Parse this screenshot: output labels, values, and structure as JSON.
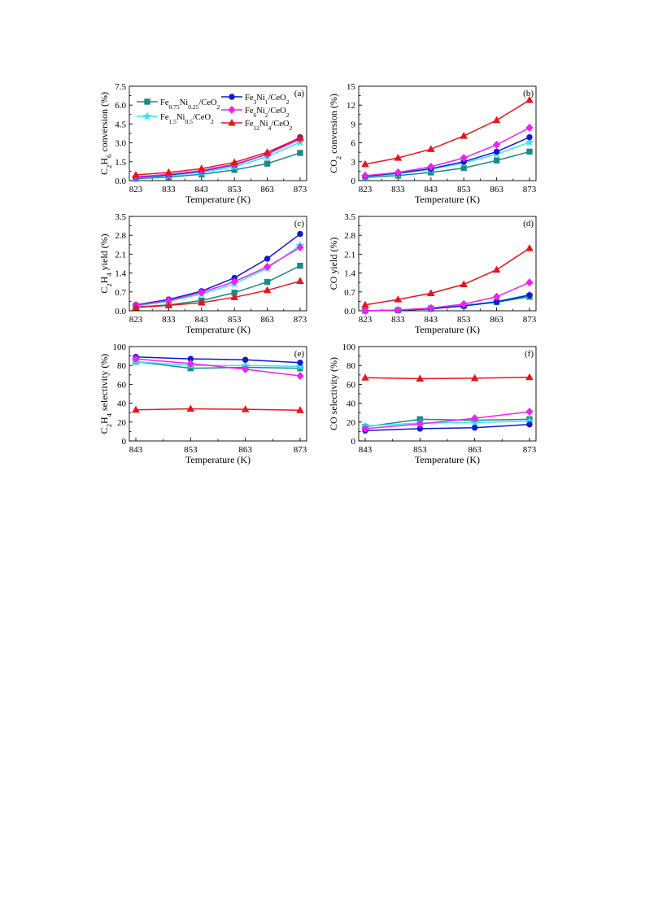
{
  "figure": {
    "legend": [
      {
        "series": "Fe0.75Ni0.25/CeO2",
        "color": "#1b8a8a",
        "marker": "square",
        "parts": [
          [
            "Fe",
            ""
          ],
          [
            "0.75",
            "sub"
          ],
          [
            "Ni",
            ""
          ],
          [
            "0.25",
            "sub"
          ],
          [
            "/CeO",
            ""
          ],
          [
            "2",
            "sub"
          ]
        ]
      },
      {
        "series": "Fe1.5Ni0.5/CeO2",
        "color": "#33e6f0",
        "marker": "star",
        "parts": [
          [
            "Fe",
            ""
          ],
          [
            "1.5",
            "sub"
          ],
          [
            "Ni",
            ""
          ],
          [
            "0.5",
            "sub"
          ],
          [
            "/CeO",
            ""
          ],
          [
            "2",
            "sub"
          ]
        ]
      },
      {
        "series": "Fe3Ni1/CeO2",
        "color": "#0f17d8",
        "marker": "circle",
        "parts": [
          [
            "Fe",
            ""
          ],
          [
            "3",
            "sub"
          ],
          [
            "Ni",
            ""
          ],
          [
            "1",
            "sub"
          ],
          [
            "/CeO",
            ""
          ],
          [
            "2",
            "sub"
          ]
        ]
      },
      {
        "series": "Fe6Ni2/CeO2",
        "color": "#ee22ee",
        "marker": "diamond",
        "parts": [
          [
            "Fe",
            ""
          ],
          [
            "6",
            "sub"
          ],
          [
            "Ni",
            ""
          ],
          [
            "2",
            "sub"
          ],
          [
            "/CeO",
            ""
          ],
          [
            "2",
            "sub"
          ]
        ]
      },
      {
        "series": "Fe12Ni4/CeO2",
        "color": "#e8141a",
        "marker": "triangle",
        "parts": [
          [
            "Fe",
            ""
          ],
          [
            "12",
            "sub"
          ],
          [
            "Ni",
            ""
          ],
          [
            "4",
            "sub"
          ],
          [
            "/CeO",
            ""
          ],
          [
            "2",
            "sub"
          ]
        ]
      }
    ]
  },
  "chart_data": [
    {
      "id": "a",
      "panel_label": "(a)",
      "type": "line",
      "xlabel": "Temperature (K)",
      "ylabel_parts": [
        [
          "C",
          ""
        ],
        [
          "2",
          "sub"
        ],
        [
          "H",
          ""
        ],
        [
          "6",
          "sub"
        ],
        [
          " conversion (%)",
          ""
        ]
      ],
      "x": [
        823,
        833,
        843,
        853,
        863,
        873
      ],
      "xticks": [
        823,
        833,
        843,
        853,
        863,
        873
      ],
      "ylim": [
        0,
        7.5
      ],
      "yticks": [
        "0.0",
        "1.5",
        "3.0",
        "4.5",
        "6.0",
        "7.5"
      ],
      "series": [
        {
          "name": "Fe0.75Ni0.25/CeO2",
          "values": [
            0.15,
            0.28,
            0.5,
            0.85,
            1.35,
            2.2
          ]
        },
        {
          "name": "Fe1.5Ni0.5/CeO2",
          "values": [
            0.2,
            0.38,
            0.65,
            1.1,
            1.9,
            3.05
          ]
        },
        {
          "name": "Fe3Ni1/CeO2",
          "values": [
            0.25,
            0.45,
            0.75,
            1.25,
            2.1,
            3.45
          ]
        },
        {
          "name": "Fe6Ni2/CeO2",
          "values": [
            0.3,
            0.5,
            0.8,
            1.3,
            2.1,
            3.3
          ]
        },
        {
          "name": "Fe12Ni4/CeO2",
          "values": [
            0.45,
            0.65,
            0.95,
            1.45,
            2.25,
            3.4
          ]
        }
      ]
    },
    {
      "id": "b",
      "panel_label": "(b)",
      "type": "line",
      "xlabel": "Temperature (K)",
      "ylabel_parts": [
        [
          "CO",
          ""
        ],
        [
          "2",
          "sub"
        ],
        [
          " conversion (%)",
          ""
        ]
      ],
      "x": [
        823,
        833,
        843,
        853,
        863,
        873
      ],
      "xticks": [
        823,
        833,
        843,
        853,
        863,
        873
      ],
      "ylim": [
        0,
        15
      ],
      "yticks": [
        "0",
        "3",
        "6",
        "9",
        "12",
        "15"
      ],
      "series": [
        {
          "name": "Fe0.75Ni0.25/CeO2",
          "values": [
            0.5,
            0.8,
            1.3,
            2.0,
            3.2,
            4.6
          ]
        },
        {
          "name": "Fe1.5Ni0.5/CeO2",
          "values": [
            0.6,
            1.1,
            1.8,
            2.8,
            4.2,
            6.1
          ]
        },
        {
          "name": "Fe3Ni1/CeO2",
          "values": [
            0.7,
            1.2,
            1.9,
            3.0,
            4.6,
            6.9
          ]
        },
        {
          "name": "Fe6Ni2/CeO2",
          "values": [
            0.8,
            1.3,
            2.2,
            3.6,
            5.7,
            8.4
          ]
        },
        {
          "name": "Fe12Ni4/CeO2",
          "values": [
            2.6,
            3.6,
            5.0,
            7.1,
            9.6,
            12.8
          ]
        }
      ]
    },
    {
      "id": "c",
      "panel_label": "(c)",
      "type": "line",
      "xlabel": "Temperature (K)",
      "ylabel_parts": [
        [
          "C",
          ""
        ],
        [
          "2",
          "sub"
        ],
        [
          "H",
          ""
        ],
        [
          "4",
          "sub"
        ],
        [
          " yield (%)",
          ""
        ]
      ],
      "x": [
        823,
        833,
        843,
        853,
        863,
        873
      ],
      "xticks": [
        823,
        833,
        843,
        853,
        863,
        873
      ],
      "ylim": [
        0,
        3.5
      ],
      "yticks": [
        "0.0",
        "0.7",
        "1.4",
        "2.1",
        "2.8",
        "3.5"
      ],
      "series": [
        {
          "name": "Fe0.75Ni0.25/CeO2",
          "values": [
            0.14,
            0.22,
            0.38,
            0.67,
            1.07,
            1.67
          ]
        },
        {
          "name": "Fe1.5Ni0.5/CeO2",
          "values": [
            0.18,
            0.35,
            0.62,
            1.0,
            1.58,
            2.42
          ]
        },
        {
          "name": "Fe3Ni1/CeO2",
          "values": [
            0.22,
            0.42,
            0.73,
            1.22,
            1.93,
            2.85
          ]
        },
        {
          "name": "Fe6Ni2/CeO2",
          "values": [
            0.2,
            0.38,
            0.68,
            1.08,
            1.63,
            2.35
          ]
        },
        {
          "name": "Fe12Ni4/CeO2",
          "values": [
            0.12,
            0.2,
            0.3,
            0.5,
            0.76,
            1.1
          ]
        }
      ]
    },
    {
      "id": "d",
      "panel_label": "(d)",
      "type": "line",
      "xlabel": "Temperature (K)",
      "ylabel_parts": [
        [
          "CO yield (%)",
          ""
        ]
      ],
      "x": [
        823,
        833,
        843,
        853,
        863,
        873
      ],
      "xticks": [
        823,
        833,
        843,
        853,
        863,
        873
      ],
      "ylim": [
        0,
        3.5
      ],
      "yticks": [
        "0.0",
        "0.7",
        "1.4",
        "2.1",
        "2.8",
        "3.5"
      ],
      "series": [
        {
          "name": "Fe0.75Ni0.25/CeO2",
          "values": [
            0.0,
            0.02,
            0.08,
            0.18,
            0.32,
            0.52
          ]
        },
        {
          "name": "Fe1.5Ni0.5/CeO2",
          "values": [
            0.0,
            0.03,
            0.08,
            0.2,
            0.35,
            0.6
          ]
        },
        {
          "name": "Fe3Ni1/CeO2",
          "values": [
            0.0,
            0.02,
            0.07,
            0.18,
            0.33,
            0.58
          ]
        },
        {
          "name": "Fe6Ni2/CeO2",
          "values": [
            0.0,
            0.03,
            0.1,
            0.25,
            0.52,
            1.05
          ]
        },
        {
          "name": "Fe12Ni4/CeO2",
          "values": [
            0.22,
            0.42,
            0.65,
            0.98,
            1.52,
            2.32
          ]
        }
      ]
    },
    {
      "id": "e",
      "panel_label": "(e)",
      "type": "line",
      "xlabel": "Temperature (K)",
      "ylabel_parts": [
        [
          "C",
          ""
        ],
        [
          "2",
          "sub"
        ],
        [
          "H",
          ""
        ],
        [
          "4",
          "sub"
        ],
        [
          " selectivity (%)",
          ""
        ]
      ],
      "x": [
        843,
        853,
        863,
        873
      ],
      "xticks": [
        843,
        853,
        863,
        873
      ],
      "ylim": [
        0,
        100
      ],
      "yticks": [
        "0",
        "20",
        "40",
        "60",
        "80",
        "100"
      ],
      "series": [
        {
          "name": "Fe0.75Ni0.25/CeO2",
          "values": [
            84,
            77,
            78,
            77
          ]
        },
        {
          "name": "Fe1.5Ni0.5/CeO2",
          "values": [
            84,
            80,
            80,
            79
          ]
        },
        {
          "name": "Fe3Ni1/CeO2",
          "values": [
            89,
            87,
            86,
            83
          ]
        },
        {
          "name": "Fe6Ni2/CeO2",
          "values": [
            87,
            82,
            76,
            69
          ]
        },
        {
          "name": "Fe12Ni4/CeO2",
          "values": [
            33,
            34,
            33.5,
            32.5
          ]
        }
      ]
    },
    {
      "id": "f",
      "panel_label": "(f)",
      "type": "line",
      "xlabel": "Temperature (K)",
      "ylabel_parts": [
        [
          "CO selectivity (%)",
          ""
        ]
      ],
      "x": [
        843,
        853,
        863,
        873
      ],
      "xticks": [
        843,
        853,
        863,
        873
      ],
      "ylim": [
        0,
        100
      ],
      "yticks": [
        "0",
        "20",
        "40",
        "60",
        "80",
        "100"
      ],
      "series": [
        {
          "name": "Fe0.75Ni0.25/CeO2",
          "values": [
            15,
            23,
            22,
            23
          ]
        },
        {
          "name": "Fe1.5Ni0.5/CeO2",
          "values": [
            16,
            19,
            19.5,
            21
          ]
        },
        {
          "name": "Fe3Ni1/CeO2",
          "values": [
            11,
            13,
            14,
            17.5
          ]
        },
        {
          "name": "Fe6Ni2/CeO2",
          "values": [
            13,
            18,
            24,
            31
          ]
        },
        {
          "name": "Fe12Ni4/CeO2",
          "values": [
            67,
            66,
            66.5,
            67.5
          ]
        }
      ]
    }
  ]
}
